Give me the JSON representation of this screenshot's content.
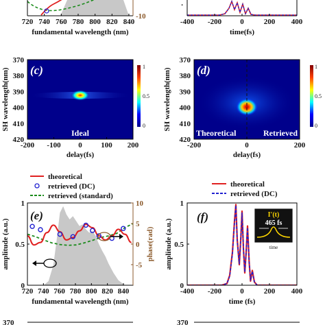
{
  "panels": {
    "a": {
      "xlabel": "fundamental wavelength (nm)",
      "xticks": [
        "720",
        "740",
        "760",
        "780",
        "800",
        "820",
        "840"
      ],
      "right_tick_bottom": "-10"
    },
    "b": {
      "xlabel": "time(fs)",
      "xticks": [
        "-400",
        "-200",
        "0",
        "200",
        "400"
      ]
    },
    "c": {
      "label": "(c)",
      "caption": "Ideal",
      "ylabel": "SH wavelength(nm)",
      "xlabel": "delay(fs)",
      "yticks": [
        "370",
        "380",
        "390",
        "400",
        "410",
        "420"
      ],
      "xticks": [
        "-200",
        "-100",
        "0",
        "100",
        "200"
      ],
      "colorbar": {
        "max": "1",
        "mid": "0.5",
        "min": "0"
      }
    },
    "d": {
      "label": "(d)",
      "caption_left": "Theoretical",
      "caption_right": "Retrieved",
      "yticks": [
        "370",
        "380",
        "390",
        "400",
        "410",
        "420"
      ],
      "xticks": [
        "-200",
        "0",
        "200"
      ],
      "xlabel": "delay(fs)",
      "colorbar": {
        "max": "1",
        "mid": "0.5",
        "min": "0"
      }
    },
    "e": {
      "label": "(e)",
      "legend": [
        "theoretical",
        "retrieved (DC)",
        "retrieved (standard)"
      ],
      "ylabel_left": "amplitude (a.u.)",
      "ylabel_right": "phase(rad)",
      "xlabel": "fundamental wavelength (nm)",
      "yticks_left": [
        "0",
        "0.5",
        "1"
      ],
      "yticks_right": [
        "10",
        "5",
        "0",
        "-5"
      ],
      "xticks": [
        "720",
        "740",
        "760",
        "780",
        "800",
        "820",
        "840"
      ]
    },
    "f": {
      "label": "(f)",
      "legend": [
        "theoretical",
        "retrieved (DC)"
      ],
      "ylabel": "amplitude (a.u.)",
      "xlabel": "time (fs)",
      "yticks": [
        "0",
        "0.5",
        "1"
      ],
      "xticks": [
        "-400",
        "-200",
        "0",
        "200",
        "400"
      ],
      "inset_title": "I'(t)",
      "inset_value": "465 fs",
      "inset_xlabel": "time"
    },
    "bottom": {
      "left_tick": "370",
      "right_tick": "370"
    }
  },
  "colors": {
    "theoretical": "#e02020",
    "retrieved_dc": "#2020d0",
    "retrieved_standard": "#1a8a1a",
    "phase_axis": "#8b5a2b",
    "spectrum_fill": "#c8c8c8",
    "map_bg": "#00008b"
  },
  "chart_data": [
    {
      "type": "area",
      "panel": "e",
      "title": "",
      "xlabel": "fundamental wavelength (nm)",
      "ylabel": "amplitude (a.u.)",
      "xlim": [
        720,
        850
      ],
      "ylim": [
        0,
        1
      ],
      "y2lim": [
        -10,
        10
      ],
      "spectrum": {
        "x": [
          720,
          730,
          740,
          746,
          752,
          756,
          760,
          764,
          768,
          772,
          776,
          780,
          784,
          788,
          792,
          796,
          800,
          804,
          808,
          812,
          816,
          820,
          826,
          832,
          840,
          850
        ],
        "values": [
          0,
          0,
          0,
          0.05,
          0.25,
          0.55,
          0.88,
          0.96,
          0.86,
          0.8,
          0.84,
          0.78,
          0.72,
          0.74,
          0.68,
          0.64,
          0.66,
          0.6,
          0.5,
          0.42,
          0.35,
          0.26,
          0.15,
          0.06,
          0,
          0
        ]
      },
      "series": [
        {
          "name": "theoretical",
          "axis": "right",
          "x": [
            720,
            728,
            736,
            744,
            752,
            760,
            768,
            776,
            784,
            792,
            800,
            808,
            816,
            824,
            832,
            840,
            848
          ],
          "values": [
            2,
            -0.2,
            0.4,
            2.8,
            4.6,
            3.0,
            1.0,
            1.6,
            3.2,
            4.8,
            4.0,
            2.0,
            1.0,
            2.0,
            3.6,
            2.4,
            0.4
          ]
        },
        {
          "name": "retrieved (DC)",
          "axis": "right",
          "x": [
            726,
            736,
            760,
            776,
            792,
            800,
            808,
            824,
            838
          ],
          "values": [
            4.3,
            3.5,
            2.4,
            1.8,
            4.6,
            3.3,
            2.0,
            1.4,
            3.8
          ]
        },
        {
          "name": "retrieved (standard)",
          "axis": "right",
          "x": [
            720,
            730,
            740,
            750,
            760,
            770,
            780,
            790,
            800,
            810,
            820,
            830,
            840,
            850
          ],
          "values": [
            2.4,
            1.8,
            1.0,
            0.3,
            -0.1,
            -0.3,
            -0.2,
            0.3,
            0.9,
            1.6,
            2.0,
            2.6,
            4.0,
            5.0
          ]
        }
      ]
    },
    {
      "type": "line",
      "panel": "f",
      "xlabel": "time (fs)",
      "ylabel": "amplitude (a.u.)",
      "xlim": [
        -400,
        400
      ],
      "ylim": [
        0,
        1
      ],
      "series": [
        {
          "name": "theoretical",
          "x": [
            -400,
            -150,
            -110,
            -90,
            -70,
            -55,
            -45,
            -35,
            -20,
            -8,
            0,
            10,
            20,
            30,
            40,
            52,
            62,
            75,
            90,
            110,
            150,
            400
          ],
          "values": [
            0,
            0,
            0.02,
            0.12,
            0.4,
            0.78,
            0.98,
            0.55,
            0.25,
            0.6,
            0.9,
            0.45,
            0.15,
            0.4,
            0.72,
            0.28,
            0.05,
            0.18,
            0.04,
            0,
            0,
            0
          ]
        },
        {
          "name": "retrieved (DC)",
          "x": [
            -400,
            -150,
            -110,
            -90,
            -70,
            -55,
            -45,
            -35,
            -20,
            -8,
            0,
            10,
            20,
            30,
            40,
            52,
            62,
            75,
            90,
            110,
            150,
            400
          ],
          "values": [
            0,
            0,
            0.02,
            0.11,
            0.38,
            0.76,
            0.97,
            0.54,
            0.26,
            0.59,
            0.88,
            0.46,
            0.16,
            0.39,
            0.7,
            0.29,
            0.06,
            0.17,
            0.04,
            0,
            0,
            0
          ]
        }
      ]
    },
    {
      "type": "heatmap",
      "panel": "c",
      "xlabel": "delay(fs)",
      "ylabel": "SH wavelength(nm)",
      "xlim": [
        -200,
        200
      ],
      "ylim": [
        420,
        370
      ],
      "peak": {
        "delay": 0,
        "wavelength": 393
      }
    },
    {
      "type": "heatmap",
      "panel": "d",
      "xlabel": "delay(fs)",
      "ylabel": "SH wavelength(nm)",
      "xlim": [
        -200,
        200
      ],
      "ylim": [
        420,
        370
      ],
      "peak": {
        "delay": 0,
        "wavelength": 401
      }
    }
  ]
}
